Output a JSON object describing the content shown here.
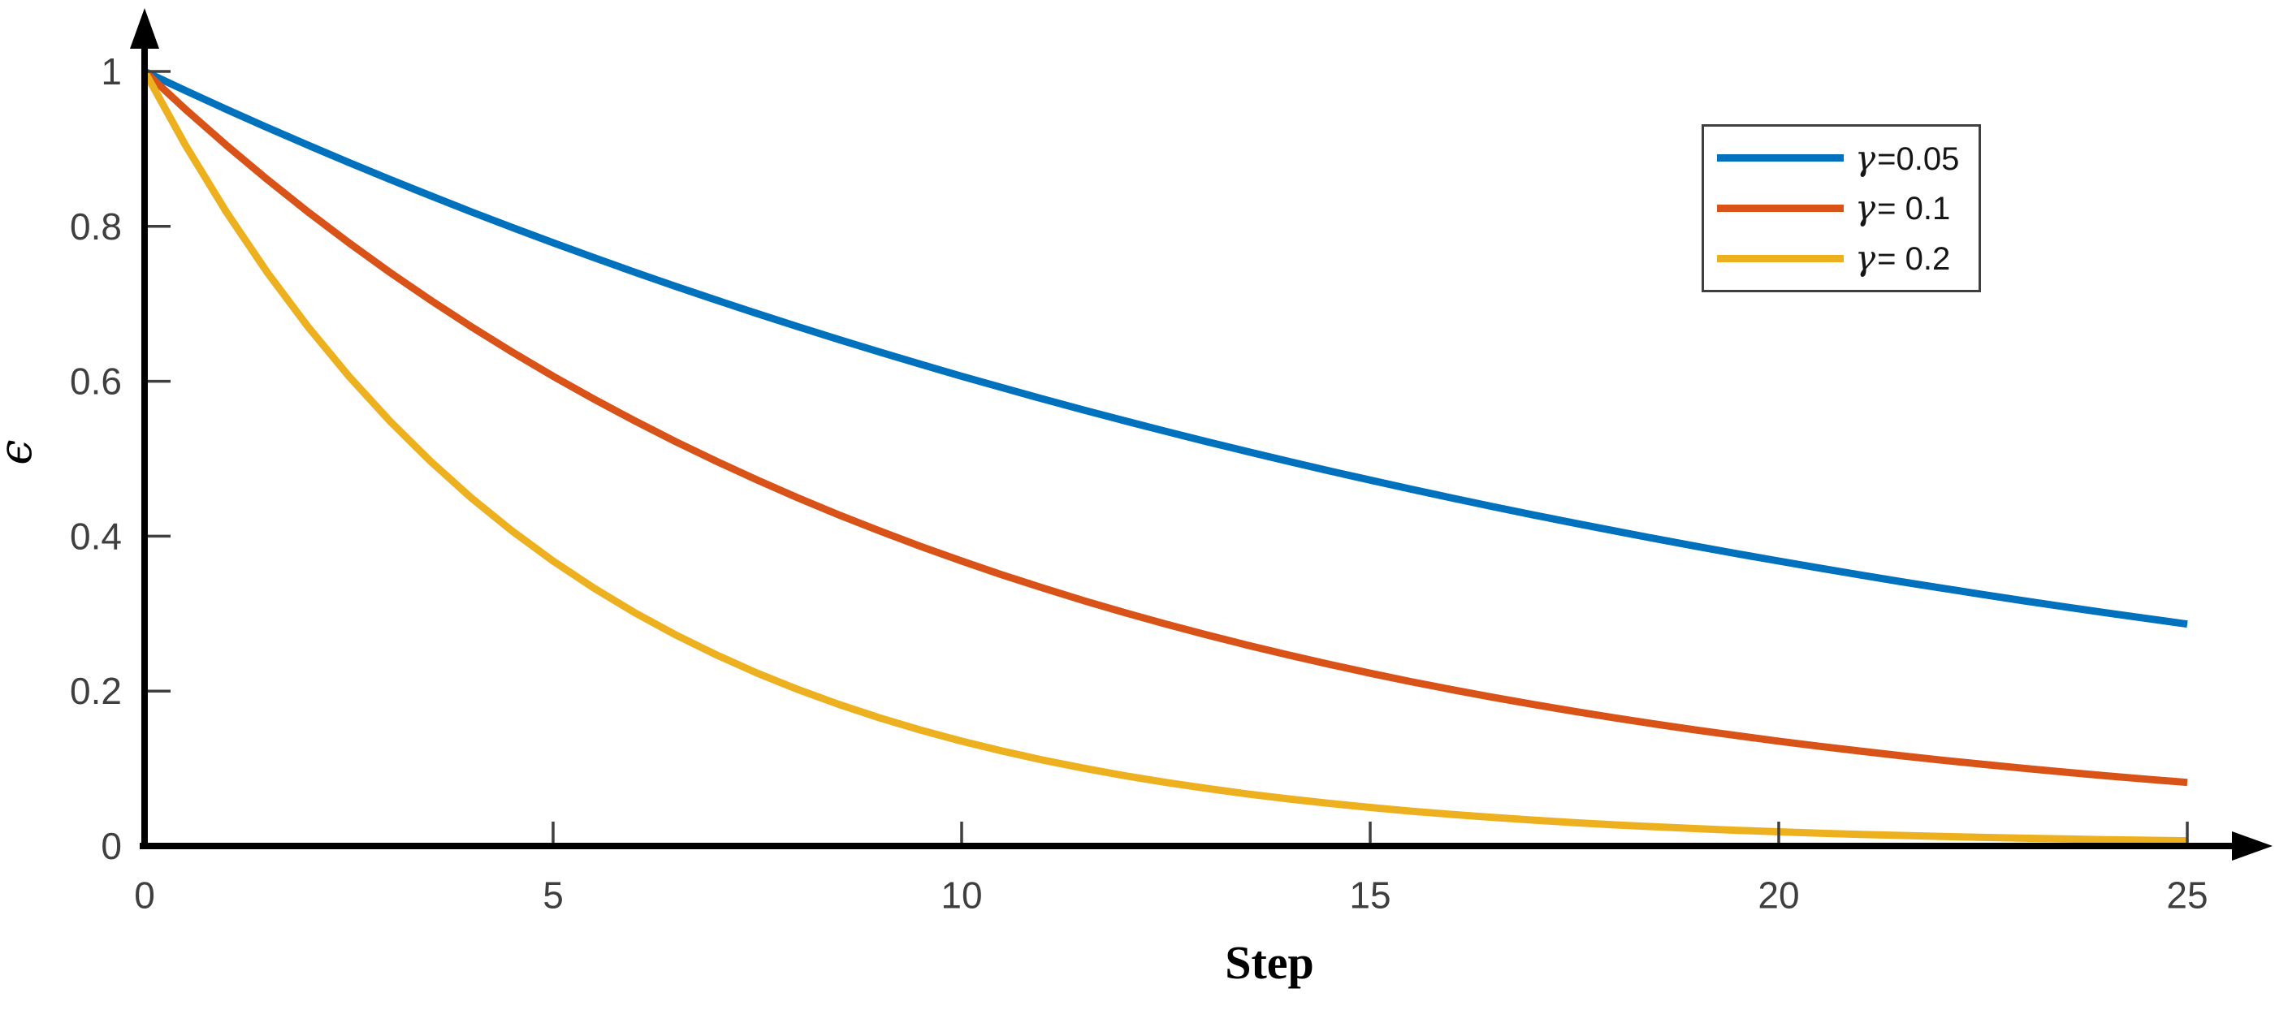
{
  "figure": {
    "background": "#ffffff",
    "axis_color": "#000000",
    "tick_color": "#3f3f3f",
    "tick_label_color": "#3f3f3f",
    "legend_border_color": "#3f3f3f"
  },
  "chart_data": {
    "type": "line",
    "title": "",
    "xlabel": "Step",
    "ylabel": "ϵ",
    "xlim": [
      0,
      25
    ],
    "ylim": [
      0,
      1
    ],
    "grid": false,
    "legend_position": "top-right-inside",
    "xticks": [
      0,
      5,
      10,
      15,
      20,
      25
    ],
    "xtick_labels": [
      "0",
      "5",
      "10",
      "15",
      "20",
      "25"
    ],
    "yticks": [
      0,
      0.2,
      0.4,
      0.6,
      0.8,
      1
    ],
    "ytick_labels": [
      "0",
      "0.2",
      "0.4",
      "0.6",
      "0.8",
      "1"
    ],
    "x": [
      0,
      0.5,
      1,
      1.5,
      2,
      2.5,
      3,
      3.5,
      4,
      4.5,
      5,
      5.5,
      6,
      6.5,
      7,
      7.5,
      8,
      8.5,
      9,
      9.5,
      10,
      10.5,
      11,
      11.5,
      12,
      12.5,
      13,
      13.5,
      14,
      14.5,
      15,
      15.5,
      16,
      16.5,
      17,
      17.5,
      18,
      18.5,
      19,
      19.5,
      20,
      20.5,
      21,
      21.5,
      22,
      22.5,
      23,
      23.5,
      24,
      24.5,
      25
    ],
    "series": [
      {
        "name": "γ=0.05",
        "symbol": "γ",
        "label_rest": "=0.05",
        "gamma": 0.05,
        "color": "#0072BD",
        "values": [
          1,
          0.9753,
          0.9512,
          0.9277,
          0.9048,
          0.8825,
          0.8607,
          0.8395,
          0.8187,
          0.7985,
          0.7788,
          0.7596,
          0.7408,
          0.7225,
          0.7047,
          0.6873,
          0.6703,
          0.6538,
          0.6376,
          0.6219,
          0.6065,
          0.5916,
          0.5769,
          0.5627,
          0.5488,
          0.5353,
          0.522,
          0.5092,
          0.4966,
          0.4843,
          0.4724,
          0.4607,
          0.4493,
          0.4382,
          0.4274,
          0.4169,
          0.4066,
          0.3965,
          0.3867,
          0.3772,
          0.3679,
          0.3588,
          0.3499,
          0.3412,
          0.3329,
          0.3246,
          0.3166,
          0.3088,
          0.3012,
          0.2938,
          0.2865
        ]
      },
      {
        "name": "γ= 0.1",
        "symbol": "γ",
        "label_rest": "= 0.1",
        "gamma": 0.1,
        "color": "#D95319",
        "values": [
          1,
          0.9512,
          0.9048,
          0.8607,
          0.8187,
          0.7788,
          0.7408,
          0.7047,
          0.6703,
          0.6376,
          0.6065,
          0.5769,
          0.5488,
          0.522,
          0.4966,
          0.4724,
          0.4493,
          0.4274,
          0.4066,
          0.3867,
          0.3679,
          0.3499,
          0.3329,
          0.3166,
          0.3012,
          0.2865,
          0.2725,
          0.2592,
          0.2466,
          0.2346,
          0.2231,
          0.2122,
          0.2019,
          0.192,
          0.1827,
          0.1738,
          0.1653,
          0.1572,
          0.1496,
          0.1423,
          0.1353,
          0.1287,
          0.1225,
          0.1165,
          0.1108,
          0.1054,
          0.1003,
          0.0954,
          0.0907,
          0.0863,
          0.0821
        ]
      },
      {
        "name": "γ= 0.2",
        "symbol": "γ",
        "label_rest": "= 0.2",
        "gamma": 0.2,
        "color": "#EDB120",
        "values": [
          1,
          0.9048,
          0.8187,
          0.7408,
          0.6703,
          0.6065,
          0.5488,
          0.4966,
          0.4493,
          0.4066,
          0.3679,
          0.3329,
          0.3012,
          0.2725,
          0.2466,
          0.2231,
          0.2019,
          0.1827,
          0.1653,
          0.1496,
          0.1353,
          0.1225,
          0.1108,
          0.1003,
          0.0907,
          0.0821,
          0.0743,
          0.0672,
          0.0608,
          0.055,
          0.0498,
          0.045,
          0.0408,
          0.0369,
          0.0334,
          0.0302,
          0.0273,
          0.0247,
          0.0224,
          0.0202,
          0.0183,
          0.0166,
          0.015,
          0.0136,
          0.0123,
          0.0111,
          0.0101,
          0.0091,
          0.0082,
          0.0074,
          0.0067
        ]
      }
    ]
  }
}
